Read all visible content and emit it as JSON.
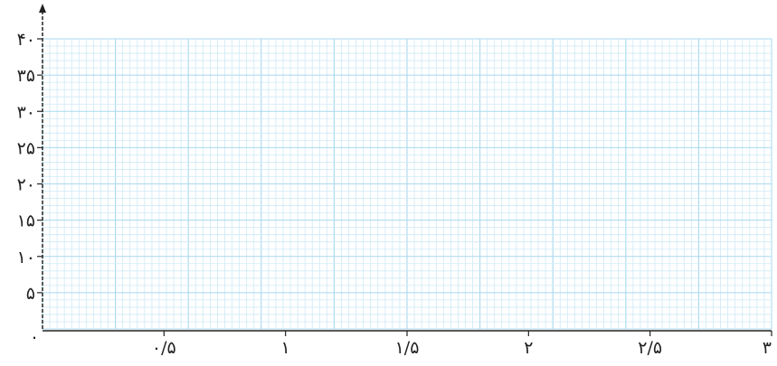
{
  "chart_data": {
    "type": "scatter",
    "title": "",
    "xlabel": "",
    "ylabel": "",
    "xlim": [
      0,
      3
    ],
    "ylim": [
      0,
      40
    ],
    "x_ticks": [
      {
        "value": 0.5,
        "label": "۰/۵"
      },
      {
        "value": 1,
        "label": "۱"
      },
      {
        "value": 1.5,
        "label": "۱/۵"
      },
      {
        "value": 2,
        "label": "۲"
      },
      {
        "value": 2.5,
        "label": "۲/۵"
      },
      {
        "value": 3,
        "label": "۳"
      }
    ],
    "y_ticks": [
      {
        "value": 5,
        "label": "۵"
      },
      {
        "value": 10,
        "label": "۱۰"
      },
      {
        "value": 15,
        "label": "۱۵"
      },
      {
        "value": 20,
        "label": "۲۰"
      },
      {
        "value": 25,
        "label": "۲۵"
      },
      {
        "value": 30,
        "label": "۳۰"
      },
      {
        "value": 35,
        "label": "۳۵"
      },
      {
        "value": 40,
        "label": "۴۰"
      }
    ],
    "origin_label": "۰",
    "grid": true,
    "series": [],
    "colors": {
      "grid_minor": "#cfe9f6",
      "grid_major": "#a9d8ef",
      "axis": "#222222"
    }
  }
}
